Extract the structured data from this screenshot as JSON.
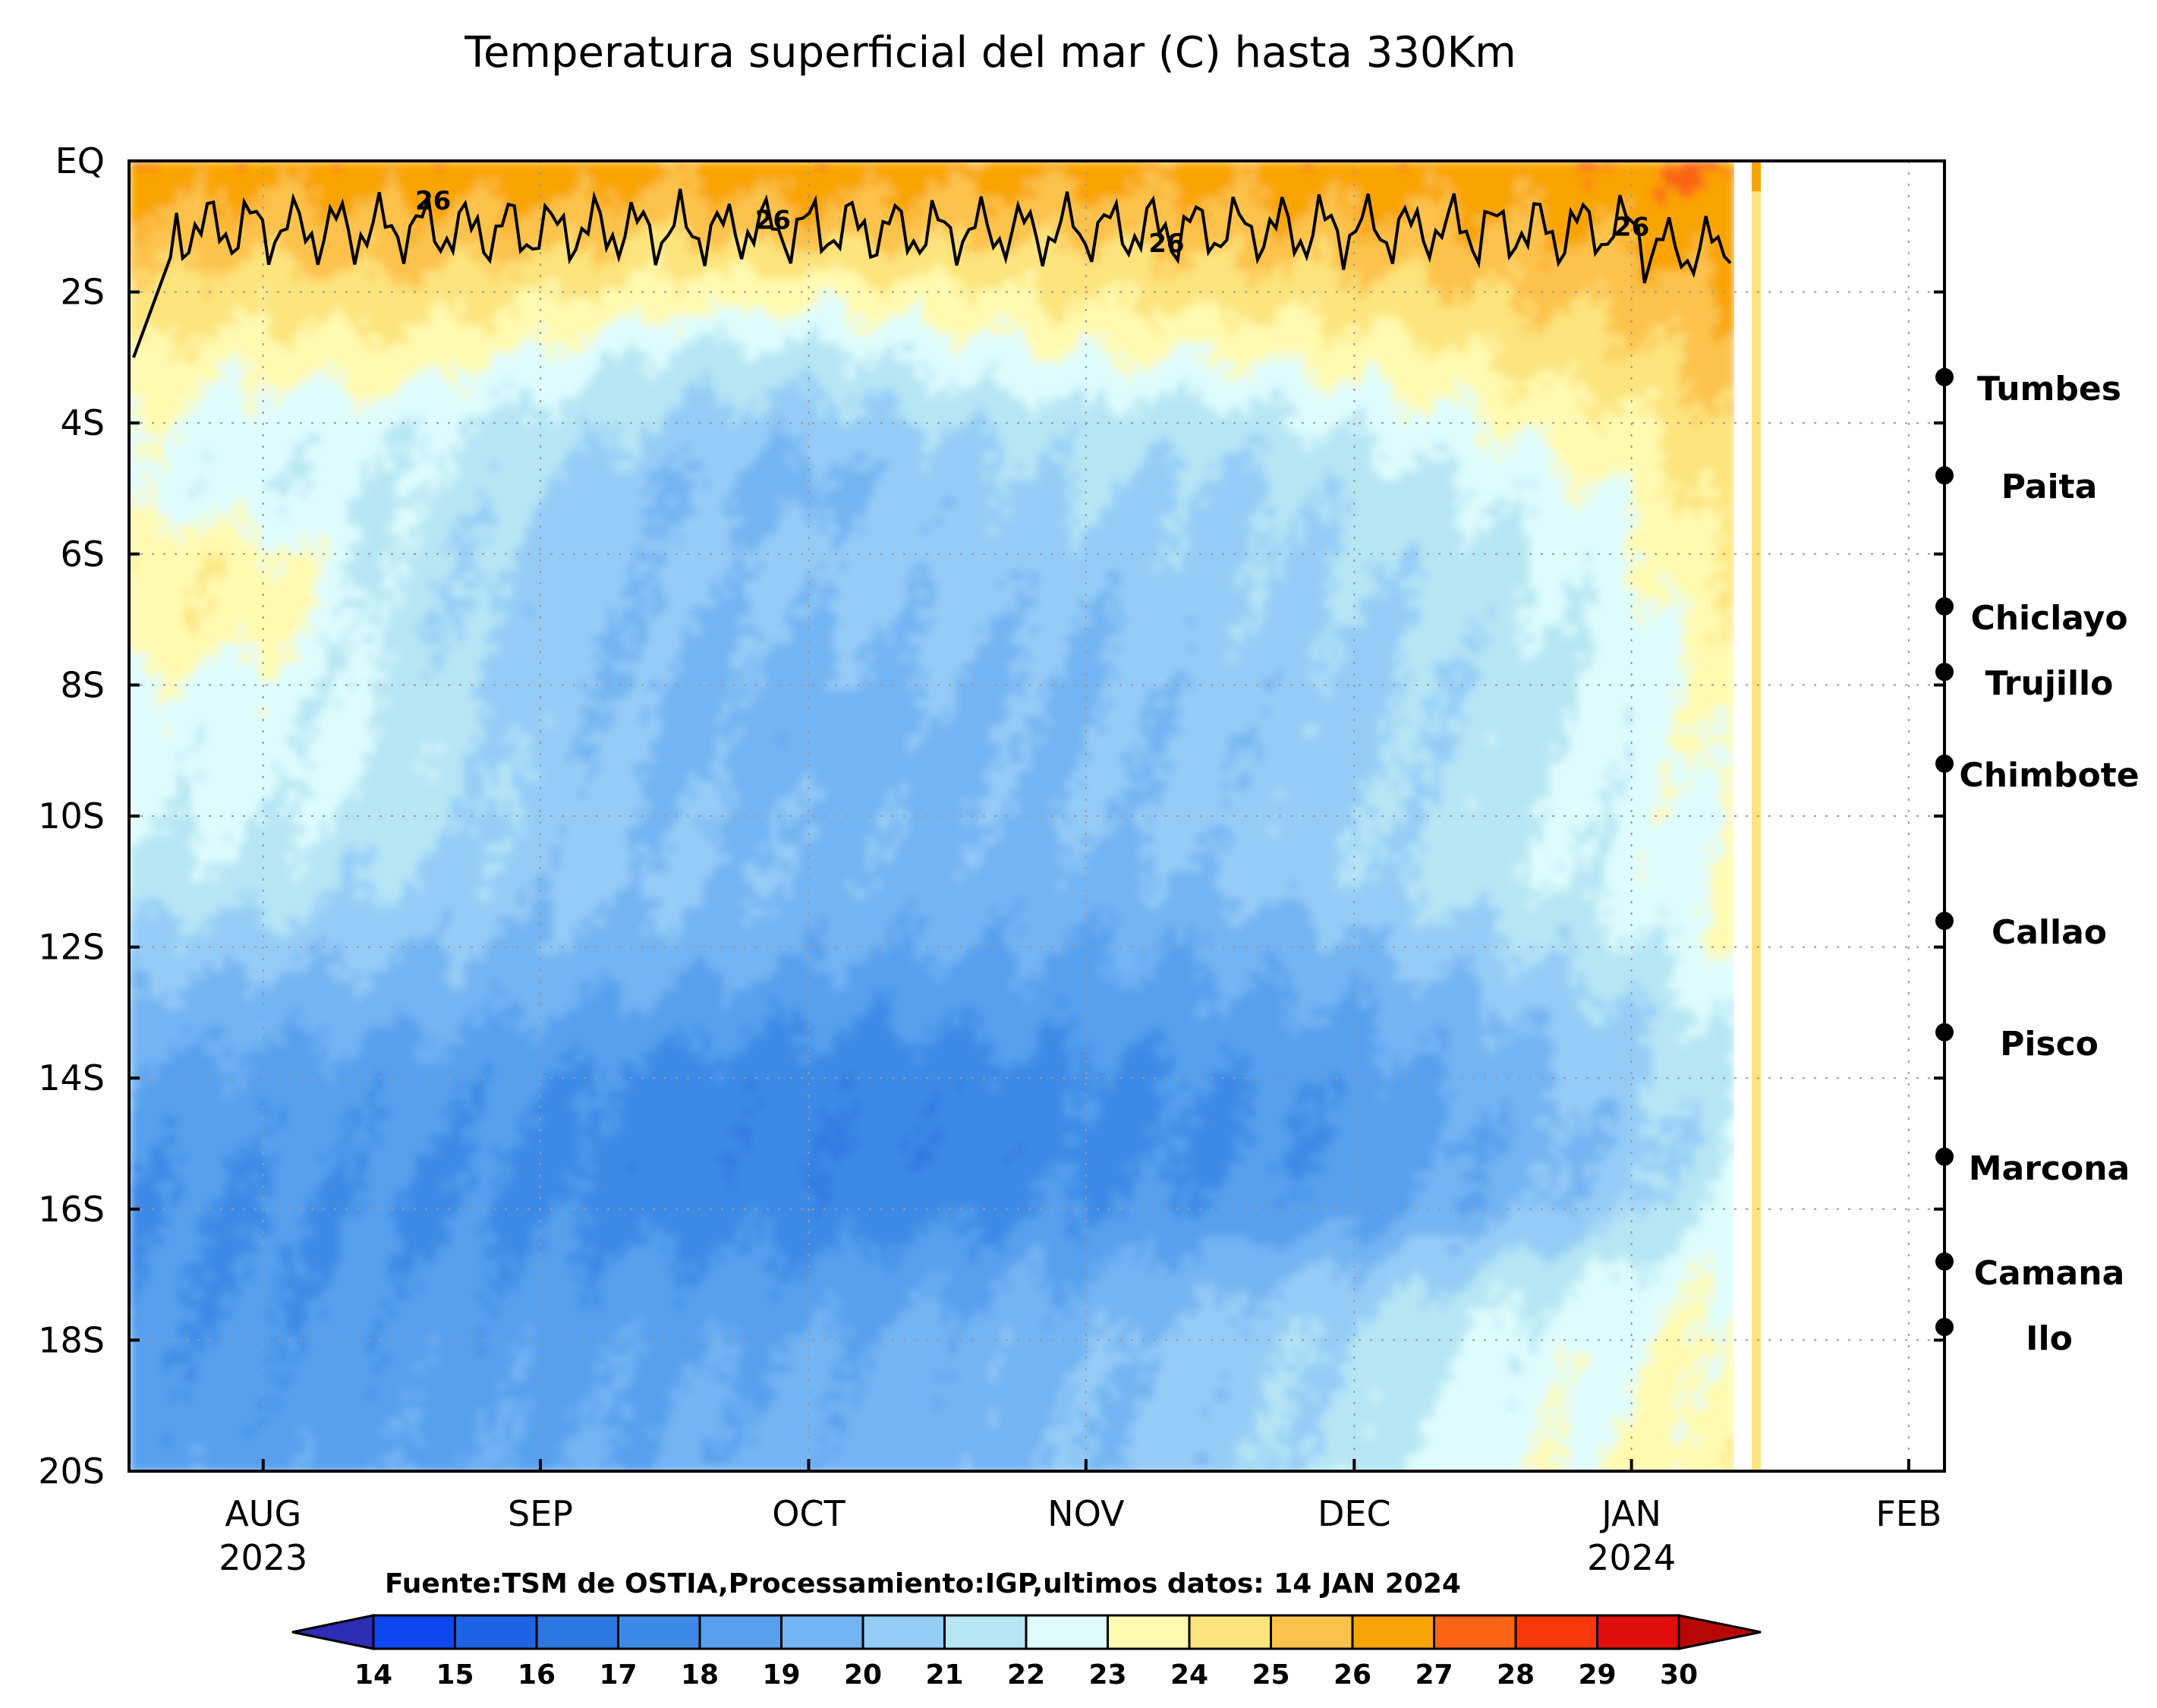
{
  "chart_data": {
    "type": "heatmap",
    "title": "Temperatura superficial del mar (C) hasta 330Km",
    "source_note": "Fuente:TSM de OSTIA,Processamiento:IGP,ultimos datos: 14 JAN 2024",
    "x_range": [
      "2023-07-17",
      "2024-02-05"
    ],
    "x_ticks": [
      {
        "date": "2023-08-01",
        "label": "AUG",
        "year": "2023"
      },
      {
        "date": "2023-09-01",
        "label": "SEP",
        "year": ""
      },
      {
        "date": "2023-10-01",
        "label": "OCT",
        "year": ""
      },
      {
        "date": "2023-11-01",
        "label": "NOV",
        "year": ""
      },
      {
        "date": "2023-12-01",
        "label": "DEC",
        "year": ""
      },
      {
        "date": "2024-01-01",
        "label": "JAN",
        "year": "2024"
      },
      {
        "date": "2024-02-01",
        "label": "FEB",
        "year": ""
      }
    ],
    "y_range_degS": [
      0,
      20
    ],
    "y_ticks": [
      {
        "lat": 0,
        "label": "EQ"
      },
      {
        "lat": 2,
        "label": "2S"
      },
      {
        "lat": 4,
        "label": "4S"
      },
      {
        "lat": 6,
        "label": "6S"
      },
      {
        "lat": 8,
        "label": "8S"
      },
      {
        "lat": 10,
        "label": "10S"
      },
      {
        "lat": 12,
        "label": "12S"
      },
      {
        "lat": 14,
        "label": "14S"
      },
      {
        "lat": 16,
        "label": "16S"
      },
      {
        "lat": 18,
        "label": "18S"
      },
      {
        "lat": 20,
        "label": "20S"
      }
    ],
    "grid": true,
    "cities": [
      {
        "name": "Tumbes",
        "lat": 3.3
      },
      {
        "name": "Paita",
        "lat": 4.8
      },
      {
        "name": "Chiclayo",
        "lat": 6.8
      },
      {
        "name": "Trujillo",
        "lat": 7.8
      },
      {
        "name": "Chimbote",
        "lat": 9.2
      },
      {
        "name": "Callao",
        "lat": 11.6
      },
      {
        "name": "Pisco",
        "lat": 13.3
      },
      {
        "name": "Marcona",
        "lat": 15.2
      },
      {
        "name": "Camana",
        "lat": 16.8
      },
      {
        "name": "Ilo",
        "lat": 17.8
      }
    ],
    "contour": {
      "level": 26,
      "label": "26"
    },
    "colorbar": {
      "levels": [
        14,
        15,
        16,
        17,
        18,
        19,
        20,
        21,
        22,
        23,
        24,
        25,
        26,
        27,
        28,
        29,
        30
      ],
      "colors": [
        "#0d47ef",
        "#1e63e3",
        "#2d77e0",
        "#3d8ae6",
        "#56a0ee",
        "#73b4f3",
        "#95ccf7",
        "#b6e6f4",
        "#defcfd",
        "#fffab0",
        "#fde47d",
        "#fcc24b",
        "#f9a404",
        "#fa6414",
        "#f7390a",
        "#e00f0b"
      ],
      "under_color": "#2c2cb4",
      "over_color": "#b80707"
    },
    "approx_field_degC": {
      "description_lat_degS": [
        0,
        1,
        2,
        3,
        4,
        5,
        6,
        7,
        8,
        9,
        10,
        11,
        12,
        13,
        14,
        15,
        16,
        17,
        18,
        19,
        20
      ],
      "dates": [
        "2023-07-17",
        "2023-08-01",
        "2023-08-15",
        "2023-09-01",
        "2023-09-15",
        "2023-10-01",
        "2023-10-15",
        "2023-11-01",
        "2023-11-15",
        "2023-12-01",
        "2023-12-15",
        "2024-01-01",
        "2024-01-14"
      ],
      "rows": [
        [
          26.8,
          26.6,
          26.6,
          26.8,
          26.4,
          26.7,
          26.5,
          26.6,
          26.4,
          26.7,
          26.6,
          26.8,
          27.3
        ],
        [
          25.8,
          25.5,
          25.7,
          25.6,
          25.2,
          25.6,
          25.4,
          25.3,
          25.6,
          25.8,
          25.9,
          26.2,
          26.8
        ],
        [
          24.8,
          24.5,
          24.7,
          24.2,
          23.6,
          23.4,
          23.6,
          24.2,
          24.4,
          24.6,
          25.0,
          25.4,
          26.2
        ],
        [
          24.0,
          23.2,
          23.6,
          22.8,
          21.8,
          21.6,
          22.4,
          23.0,
          23.0,
          23.4,
          24.0,
          24.7,
          25.6
        ],
        [
          23.0,
          22.4,
          22.4,
          21.6,
          20.8,
          20.4,
          21.0,
          21.6,
          21.4,
          22.2,
          23.0,
          23.9,
          25.2
        ],
        [
          22.6,
          22.2,
          22.0,
          21.0,
          20.0,
          19.6,
          20.4,
          21.0,
          20.6,
          21.4,
          22.0,
          23.2,
          24.8
        ],
        [
          23.8,
          23.4,
          21.8,
          20.6,
          20.2,
          20.4,
          20.4,
          20.6,
          20.8,
          21.0,
          21.6,
          22.8,
          24.5
        ],
        [
          23.9,
          23.6,
          21.6,
          20.4,
          20.0,
          20.0,
          20.2,
          20.0,
          20.6,
          20.8,
          21.4,
          22.6,
          24.0
        ],
        [
          22.8,
          22.6,
          21.8,
          20.4,
          19.8,
          19.6,
          20.0,
          19.8,
          20.4,
          20.6,
          21.2,
          22.4,
          23.6
        ],
        [
          22.4,
          22.4,
          22.0,
          20.6,
          19.8,
          19.4,
          19.6,
          20.0,
          20.2,
          20.6,
          21.4,
          22.4,
          23.4
        ],
        [
          22.2,
          22.2,
          21.6,
          20.6,
          20.0,
          19.8,
          19.8,
          20.0,
          20.4,
          20.8,
          21.6,
          22.4,
          23.2
        ],
        [
          21.6,
          21.6,
          21.0,
          20.4,
          20.2,
          19.8,
          19.6,
          19.6,
          20.0,
          20.8,
          21.6,
          22.4,
          23.2
        ],
        [
          20.6,
          20.4,
          20.2,
          19.8,
          19.6,
          19.2,
          19.0,
          19.0,
          19.2,
          19.8,
          20.6,
          21.8,
          23.2
        ],
        [
          19.6,
          19.4,
          19.4,
          19.0,
          18.6,
          18.2,
          18.2,
          18.4,
          18.6,
          19.0,
          19.8,
          21.0,
          22.6
        ],
        [
          18.8,
          18.6,
          18.4,
          18.2,
          17.6,
          17.4,
          17.4,
          17.8,
          18.0,
          18.4,
          19.2,
          20.6,
          22.2
        ],
        [
          18.2,
          18.2,
          18.2,
          17.8,
          17.4,
          17.2,
          17.2,
          17.6,
          17.8,
          18.2,
          19.0,
          20.4,
          22.0
        ],
        [
          18.0,
          18.0,
          18.0,
          17.8,
          17.6,
          17.4,
          17.6,
          18.0,
          18.2,
          18.6,
          19.4,
          20.8,
          22.4
        ],
        [
          18.0,
          18.0,
          18.2,
          18.2,
          18.2,
          18.2,
          18.6,
          19.0,
          19.6,
          20.2,
          21.2,
          22.2,
          23.0
        ],
        [
          18.2,
          18.2,
          18.4,
          18.6,
          18.8,
          19.0,
          19.4,
          19.8,
          20.4,
          21.2,
          22.2,
          22.8,
          23.4
        ],
        [
          18.4,
          18.4,
          18.6,
          18.8,
          19.0,
          19.2,
          19.4,
          19.8,
          20.4,
          21.4,
          22.4,
          23.0,
          23.6
        ],
        [
          18.6,
          18.6,
          18.8,
          19.0,
          19.2,
          19.4,
          19.6,
          20.0,
          20.6,
          21.6,
          22.6,
          23.2,
          23.8
        ]
      ]
    }
  }
}
